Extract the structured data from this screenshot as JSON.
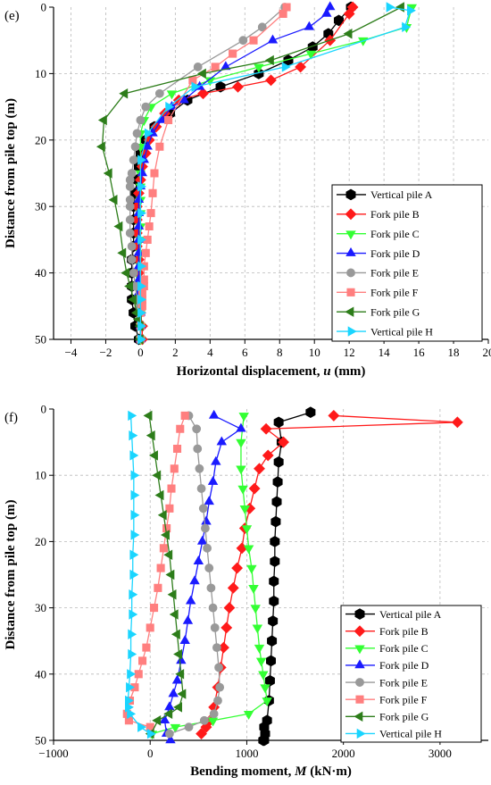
{
  "chart_data": [
    {
      "type": "line",
      "panel_label": "(e)",
      "xlabel": "Horizontal displacement, u (mm)",
      "xlabel_main": "Horizontal displacement, ",
      "xlabel_var": "u",
      "xlabel_unit": " (mm)",
      "ylabel": "Distance from pile top (m)",
      "xlim": [
        -5,
        20
      ],
      "ylim": [
        0,
        50
      ],
      "y_inverted": true,
      "x_axis_position": "bottom",
      "xticks": [
        -4,
        -2,
        0,
        2,
        4,
        6,
        8,
        10,
        12,
        14,
        16,
        18,
        20
      ],
      "xtick_labels": [
        "−4",
        "−2",
        "0",
        "2",
        "4",
        "6",
        "8",
        "10",
        "12",
        "14",
        "16",
        "18",
        "20"
      ],
      "yticks": [
        0,
        10,
        20,
        30,
        40,
        50
      ],
      "ytick_labels": [
        "0",
        "10",
        "20",
        "30",
        "40",
        "50"
      ],
      "grid": true,
      "legend_placement": "right",
      "series": [
        {
          "name": "Vertical pile A",
          "color": "#000000",
          "marker": "hexagon",
          "x": [
            12.1,
            11.4,
            10.8,
            9.9,
            8.5,
            6.8,
            4.6,
            2.7,
            1.7,
            0.8,
            0.3,
            0.0,
            -0.1,
            -0.2,
            -0.3,
            -0.4,
            -0.4,
            -0.4,
            -0.4,
            -0.5,
            -0.5,
            -0.5,
            -0.5,
            -0.4,
            -0.3,
            -0.1
          ],
          "y": [
            0,
            2,
            4,
            6,
            8,
            10,
            12,
            14,
            16,
            18,
            20,
            22,
            24,
            26,
            28,
            30,
            32,
            34,
            36,
            38,
            40,
            42,
            44,
            46,
            48,
            50
          ]
        },
        {
          "name": "Fork pile B",
          "color": "#ff1a1a",
          "marker": "diamond",
          "x": [
            12.2,
            12.0,
            10.9,
            9.2,
            7.5,
            5.6,
            3.6,
            2.2,
            1.4,
            0.9,
            0.5,
            0.3,
            0.1,
            0.0,
            -0.1,
            -0.2,
            -0.2,
            -0.2,
            -0.2,
            -0.1,
            -0.1,
            0.0,
            0.0,
            0.0,
            0.1,
            0.1
          ],
          "y": [
            0,
            1,
            5,
            9,
            11,
            12,
            13,
            14,
            16,
            18,
            20,
            22,
            24,
            26,
            28,
            30,
            32,
            34,
            36,
            38,
            40,
            42,
            44,
            46,
            48,
            50
          ]
        },
        {
          "name": "Fork pile C",
          "color": "#33ff33",
          "marker": "triangle-down",
          "x": [
            15.6,
            15.3,
            12.8,
            9.8,
            6.8,
            4.0,
            1.8,
            0.6,
            0.2,
            0.0,
            0.0,
            0.0,
            0.0,
            0.0,
            0.0,
            0.0,
            0.0,
            0.0,
            0.0,
            0.0,
            0.0,
            0.0,
            0.0,
            0.0,
            0.0,
            0.0
          ],
          "y": [
            0,
            3,
            5,
            7,
            9,
            11,
            13,
            15,
            17,
            19,
            21,
            23,
            25,
            27,
            29,
            31,
            33,
            35,
            37,
            39,
            41,
            43,
            45,
            46,
            48,
            50
          ]
        },
        {
          "name": "Fork pile D",
          "color": "#1a1aff",
          "marker": "triangle-up",
          "x": [
            10.9,
            10.7,
            9.7,
            7.6,
            4.9,
            3.4,
            2.5,
            1.8,
            1.2,
            0.7,
            0.4,
            0.2,
            0.1,
            0.0,
            -0.1,
            -0.1,
            -0.1,
            -0.1,
            -0.1,
            -0.1,
            -0.1,
            -0.1,
            0.0,
            0.0,
            0.0,
            0.0
          ],
          "y": [
            0,
            1,
            3,
            5,
            9,
            12,
            14,
            15,
            17,
            19,
            21,
            23,
            25,
            27,
            29,
            31,
            33,
            35,
            37,
            39,
            41,
            43,
            45,
            46,
            48,
            50
          ]
        },
        {
          "name": "Fork pile E",
          "color": "#999999",
          "marker": "circle",
          "x": [
            8.3,
            7.0,
            5.9,
            3.3,
            1.1,
            0.3,
            0.0,
            -0.2,
            -0.3,
            -0.4,
            -0.5,
            -0.6,
            -0.6,
            -0.6,
            -0.6,
            -0.6,
            -0.6,
            -0.5,
            -0.5,
            -0.4,
            -0.3,
            -0.2,
            -0.1,
            0.0,
            0.0,
            0.0
          ],
          "y": [
            0,
            3,
            5,
            9,
            13,
            15,
            17,
            19,
            21,
            23,
            25,
            26,
            27,
            29,
            30,
            32,
            34,
            36,
            38,
            40,
            42,
            44,
            45,
            46,
            48,
            50
          ]
        },
        {
          "name": "Fork pile F",
          "color": "#ff7f7f",
          "marker": "square",
          "x": [
            8.4,
            8.2,
            6.5,
            5.3,
            4.3,
            3.0,
            1.6,
            1.1,
            0.8,
            0.7,
            0.6,
            0.5,
            0.4,
            0.3,
            0.2,
            0.2,
            0.2,
            0.1,
            0.1,
            0.1,
            0.0,
            0.0,
            0.0
          ],
          "y": [
            0,
            1,
            5,
            7,
            9,
            11,
            17,
            21,
            25,
            28,
            31,
            33,
            35,
            37,
            39,
            41,
            42,
            43,
            44,
            45,
            46,
            48,
            50
          ]
        },
        {
          "name": "Fork pile G",
          "color": "#2d7d1a",
          "marker": "triangle-left",
          "x": [
            15.0,
            12.0,
            7.5,
            3.6,
            -0.9,
            -2.1,
            -2.2,
            -1.8,
            -1.5,
            -1.2,
            -1.0,
            -0.8,
            -0.6,
            -0.4,
            -0.2,
            -0.1,
            0.0,
            0.0
          ],
          "y": [
            0,
            4,
            8,
            10,
            13,
            17,
            21,
            25,
            29,
            33,
            37,
            40,
            42,
            44,
            46,
            47,
            48,
            50
          ]
        },
        {
          "name": "Vertical pile H",
          "color": "#1ad5ff",
          "marker": "triangle-right",
          "x": [
            14.3,
            15.5,
            15.2,
            8.3,
            3.1,
            1.6,
            0.4,
            0.0,
            0.0,
            0.0,
            0.0,
            0.0,
            0.0,
            0.0,
            0.0,
            0.0,
            0.0
          ],
          "y": [
            0,
            0.5,
            3,
            9,
            12,
            15,
            19,
            23,
            27,
            31,
            35,
            39,
            42,
            44,
            46,
            48,
            50
          ]
        }
      ]
    },
    {
      "type": "line",
      "panel_label": "(f)",
      "xlabel": "Bending moment, M (kN·m)",
      "xlabel_main": "Bending moment, ",
      "xlabel_var": "M",
      "xlabel_unit": " (kN·m)",
      "ylabel": "Distance from pile top (m)",
      "xlim": [
        -1000,
        3500
      ],
      "ylim": [
        0,
        50
      ],
      "y_inverted": true,
      "x_axis_position": "bottom",
      "xticks": [
        -1000,
        0,
        1000,
        2000,
        3000
      ],
      "xtick_labels": [
        "−1000",
        "0",
        "1000",
        "2000",
        "3000"
      ],
      "yticks": [
        0,
        10,
        20,
        30,
        40,
        50
      ],
      "ytick_labels": [
        "0",
        "10",
        "20",
        "30",
        "40",
        "50"
      ],
      "grid": true,
      "legend_placement": "bottom-right",
      "series": [
        {
          "name": "Vertical pile A",
          "color": "#000000",
          "marker": "hexagon",
          "x": [
            1660,
            1330,
            1360,
            1330,
            1320,
            1310,
            1300,
            1290,
            1290,
            1280,
            1280,
            1270,
            1260,
            1250,
            1240,
            1230,
            1210,
            1190,
            1180,
            1170,
            1180
          ],
          "y": [
            0.5,
            2,
            5,
            8,
            11,
            14,
            17,
            20,
            23,
            26,
            29,
            32,
            35,
            38,
            41,
            44,
            47,
            49,
            50,
            50,
            48
          ]
        },
        {
          "name": "Fork pile B",
          "color": "#ff1a1a",
          "marker": "diamond",
          "x": [
            1900,
            3180,
            1200,
            1380,
            1220,
            1130,
            1080,
            1030,
            980,
            950,
            900,
            860,
            820,
            790,
            760,
            730,
            700,
            660,
            620,
            580,
            530
          ],
          "y": [
            1,
            2,
            3,
            5,
            7,
            9,
            12,
            15,
            18,
            21,
            24,
            27,
            30,
            33,
            36,
            39,
            42,
            45,
            47,
            48,
            49
          ]
        },
        {
          "name": "Fork pile C",
          "color": "#33ff33",
          "marker": "triangle-down",
          "x": [
            970,
            940,
            940,
            960,
            980,
            1000,
            1020,
            1050,
            1070,
            1090,
            1110,
            1130,
            1150,
            1170,
            1190,
            1210,
            1020,
            650,
            260,
            20
          ],
          "y": [
            1,
            5,
            9,
            12,
            15,
            18,
            21,
            24,
            27,
            30,
            33,
            36,
            38,
            40,
            42,
            44,
            46,
            47,
            48,
            49
          ]
        },
        {
          "name": "Fork pile D",
          "color": "#1a1aff",
          "marker": "triangle-up",
          "x": [
            660,
            940,
            740,
            680,
            650,
            610,
            580,
            540,
            500,
            460,
            420,
            390,
            360,
            320,
            280,
            240,
            200,
            150,
            170,
            210
          ],
          "y": [
            1,
            3,
            5,
            8,
            11,
            14,
            17,
            20,
            23,
            26,
            29,
            32,
            35,
            38,
            41,
            43,
            45,
            47,
            49,
            50
          ]
        },
        {
          "name": "Fork pile E",
          "color": "#999999",
          "marker": "circle",
          "x": [
            400,
            480,
            490,
            510,
            530,
            550,
            570,
            590,
            610,
            630,
            650,
            670,
            690,
            710,
            720,
            700,
            660,
            560,
            400,
            200
          ],
          "y": [
            1,
            3,
            6,
            9,
            12,
            15,
            18,
            21,
            24,
            27,
            30,
            33,
            36,
            39,
            42,
            44,
            46,
            47,
            48,
            49
          ]
        },
        {
          "name": "Fork pile F",
          "color": "#ff7f7f",
          "marker": "square",
          "x": [
            360,
            310,
            280,
            250,
            220,
            200,
            170,
            140,
            110,
            80,
            40,
            0,
            -40,
            -80,
            -120,
            -160,
            -210,
            -240,
            -220,
            0
          ],
          "y": [
            1,
            3,
            6,
            9,
            12,
            15,
            18,
            21,
            24,
            27,
            30,
            33,
            36,
            38,
            40,
            42,
            44,
            46,
            47,
            48
          ]
        },
        {
          "name": "Fork pile G",
          "color": "#2d7d1a",
          "marker": "triangle-left",
          "x": [
            -10,
            20,
            50,
            80,
            110,
            140,
            170,
            200,
            220,
            240,
            260,
            280,
            300,
            320,
            340,
            300,
            200,
            80,
            10
          ],
          "y": [
            1,
            4,
            7,
            10,
            13,
            16,
            19,
            22,
            25,
            28,
            31,
            34,
            37,
            40,
            43,
            45,
            46,
            47,
            49
          ]
        },
        {
          "name": "Vertical pile H",
          "color": "#1ad5ff",
          "marker": "triangle-right",
          "x": [
            -200,
            -190,
            -180,
            -170,
            -170,
            -170,
            -170,
            -180,
            -180,
            -190,
            -190,
            -200,
            -200,
            -210,
            -220,
            -230,
            -230,
            -210,
            -100,
            0
          ],
          "y": [
            1,
            4,
            7,
            10,
            13,
            16,
            19,
            22,
            25,
            28,
            31,
            34,
            37,
            40,
            42,
            44,
            45,
            46,
            48,
            49
          ]
        }
      ]
    }
  ]
}
